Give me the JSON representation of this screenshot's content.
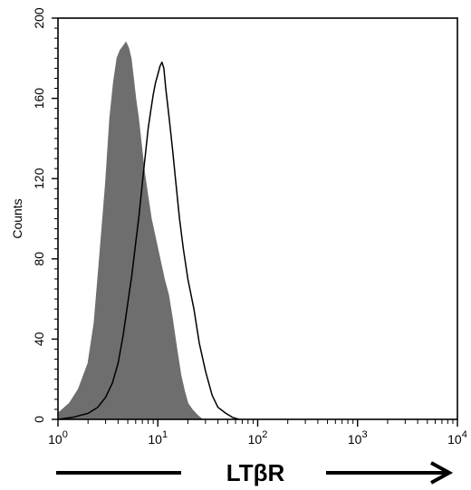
{
  "chart_data": {
    "type": "area",
    "title": "",
    "xlabel": "LTβR",
    "ylabel": "Counts",
    "x_scale": "log10",
    "xlim": [
      1,
      10000
    ],
    "ylim": [
      0,
      200
    ],
    "x_ticks": [
      {
        "value": 1,
        "base": "10",
        "exp": "0"
      },
      {
        "value": 10,
        "base": "10",
        "exp": "1"
      },
      {
        "value": 100,
        "base": "10",
        "exp": "2"
      },
      {
        "value": 1000,
        "base": "10",
        "exp": "3"
      },
      {
        "value": 10000,
        "base": "10",
        "exp": "4"
      }
    ],
    "y_ticks": [
      0,
      40,
      80,
      120,
      160,
      200
    ],
    "grid": false,
    "legend": "none",
    "series": [
      {
        "style": "filled-gray",
        "color": "#6e6e6e",
        "x": [
          1.0,
          1.3,
          1.6,
          2.0,
          2.3,
          2.6,
          3.0,
          3.3,
          3.6,
          3.9,
          4.2,
          4.5,
          4.8,
          5.1,
          5.4,
          5.7,
          6.0,
          6.4,
          6.8,
          7.3,
          7.9,
          8.6,
          9.5,
          10.5,
          11.6,
          12.8,
          14.0,
          15.5,
          17.0,
          18.5,
          20.0,
          22.0,
          25.0,
          28.0
        ],
        "y": [
          3,
          8,
          15,
          28,
          48,
          80,
          118,
          150,
          168,
          180,
          184,
          186,
          188,
          185,
          180,
          170,
          160,
          150,
          138,
          124,
          112,
          100,
          90,
          80,
          70,
          62,
          50,
          35,
          22,
          14,
          8,
          5,
          2,
          0
        ]
      },
      {
        "style": "outline-black",
        "color": "#000000",
        "x": [
          1.0,
          1.4,
          2.0,
          2.5,
          3.0,
          3.5,
          4.0,
          4.5,
          5.0,
          5.5,
          6.0,
          6.5,
          7.0,
          7.5,
          8.0,
          8.5,
          9.0,
          9.5,
          10.0,
          10.5,
          11.0,
          11.5,
          12.0,
          13.0,
          14.0,
          15.0,
          16.5,
          18.0,
          20.0,
          23.0,
          26.0,
          30.0,
          35.0,
          40.0,
          48.0,
          56.0,
          65.0
        ],
        "y": [
          0,
          1,
          3,
          6,
          11,
          18,
          28,
          42,
          58,
          72,
          88,
          102,
          118,
          132,
          145,
          154,
          162,
          168,
          172,
          176,
          178,
          175,
          165,
          150,
          135,
          120,
          100,
          85,
          70,
          55,
          38,
          24,
          12,
          6,
          3,
          1,
          0
        ]
      }
    ],
    "arrow_direction": "right"
  }
}
